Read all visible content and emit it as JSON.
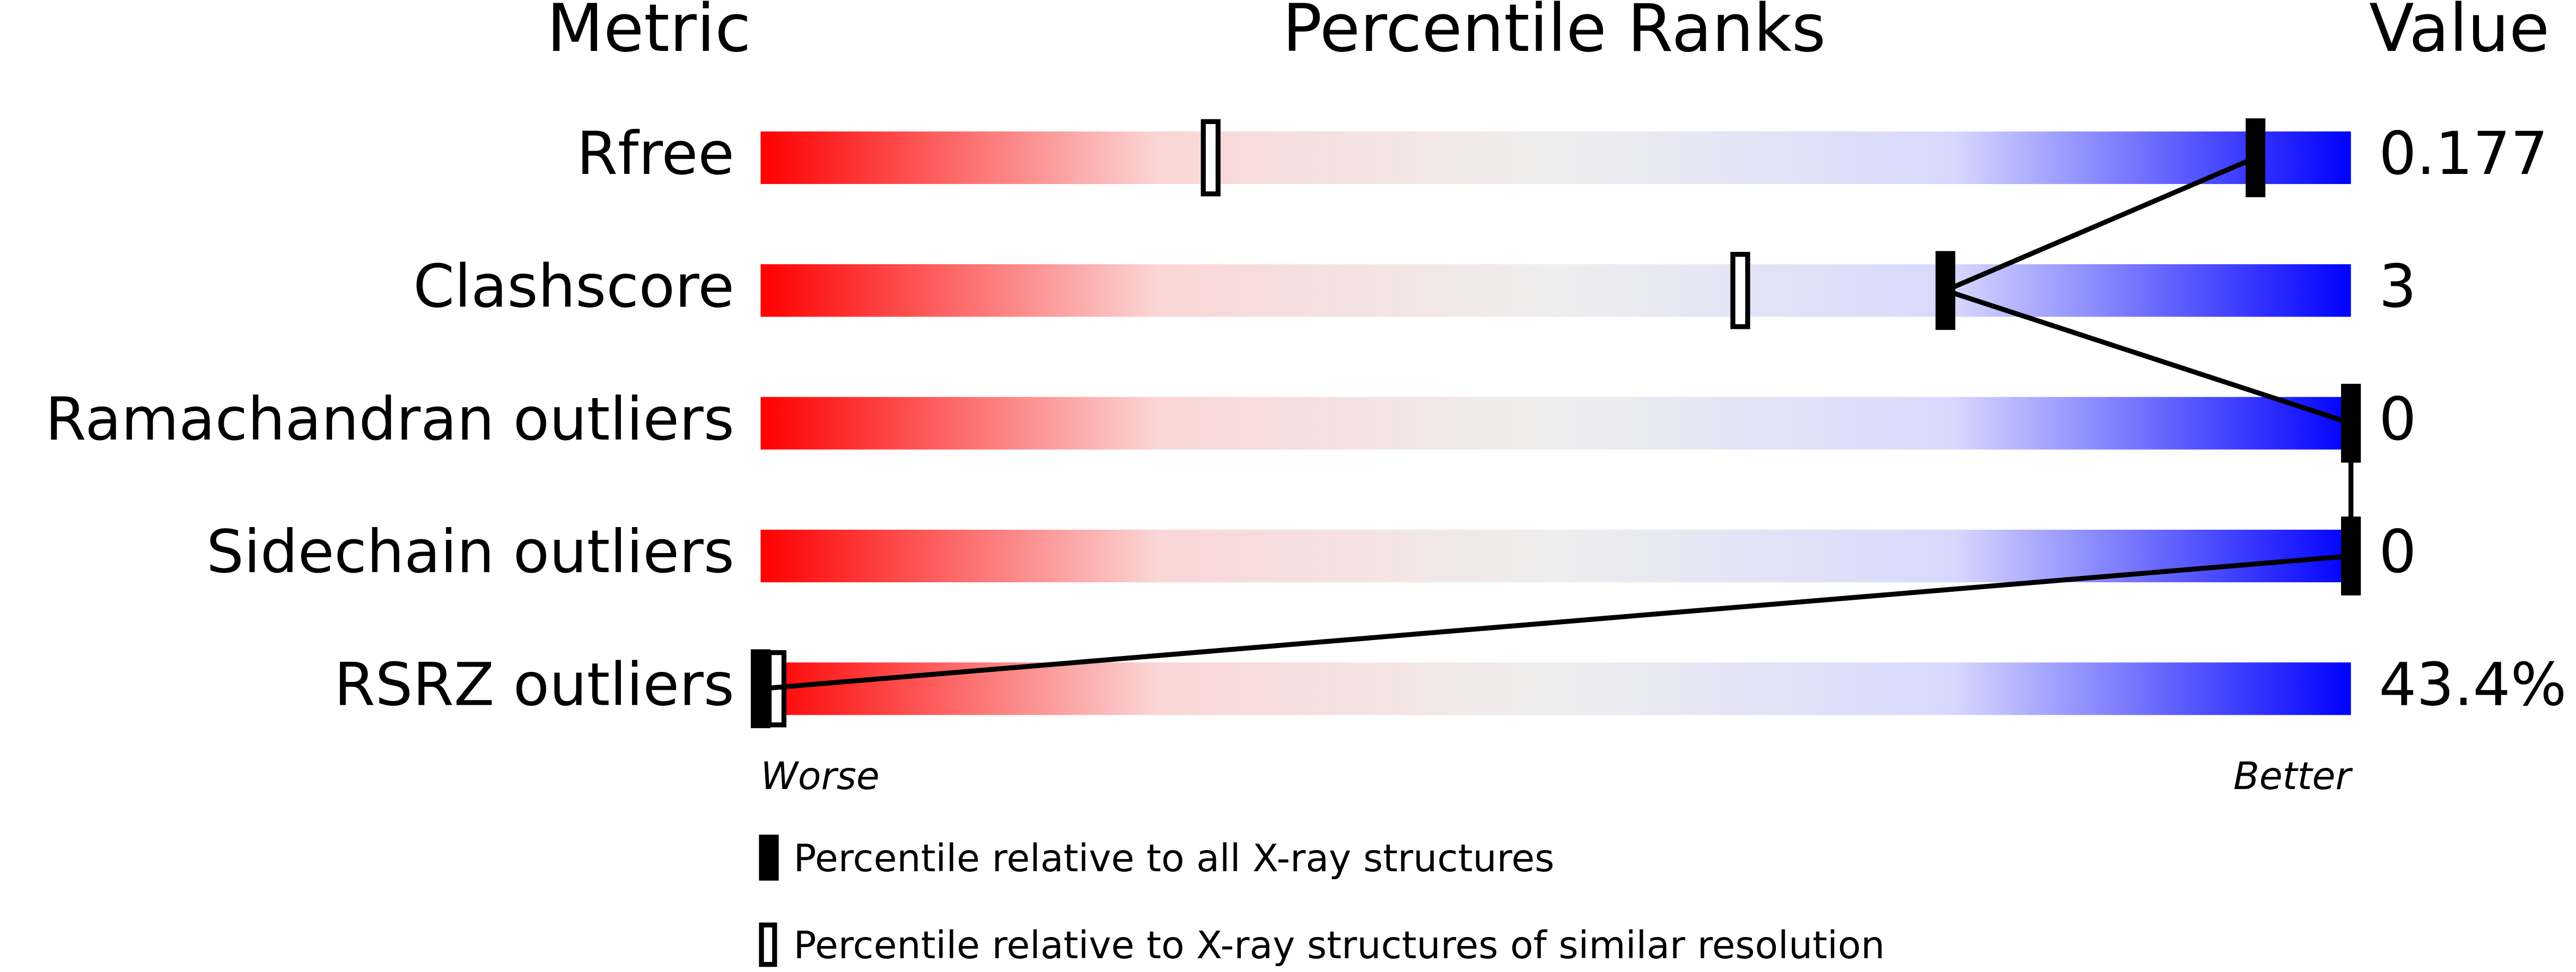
{
  "chart_data": {
    "type": "slider",
    "column_headers": [
      "Metric",
      "Percentile Ranks",
      "Value"
    ],
    "categories": [
      "Rfree",
      "Clashscore",
      "Ramachandran outliers",
      "Sidechain outliers",
      "RSRZ outliers"
    ],
    "values": [
      0.177,
      3,
      0,
      0,
      43.4
    ],
    "value_labels": [
      "0.177",
      "3",
      "0",
      "0",
      "43.4%"
    ],
    "series": [
      {
        "name": "Percentile relative to all X-ray structures",
        "color": "#000000",
        "style": "filled",
        "values": [
          94,
          74.5,
          100,
          100,
          0
        ]
      },
      {
        "name": "Percentile relative to X-ray structures of similar resolution",
        "color": "#000000",
        "style": "hollow",
        "values": [
          28.3,
          61.6,
          100,
          100,
          1
        ]
      }
    ],
    "xlim": [
      0,
      100
    ],
    "low_label": "Worse",
    "high_label": "Better",
    "gradient": [
      "#ff0000",
      "#fbd6d6",
      "#eeeeee",
      "#d8d8fe",
      "#0000ff"
    ]
  }
}
